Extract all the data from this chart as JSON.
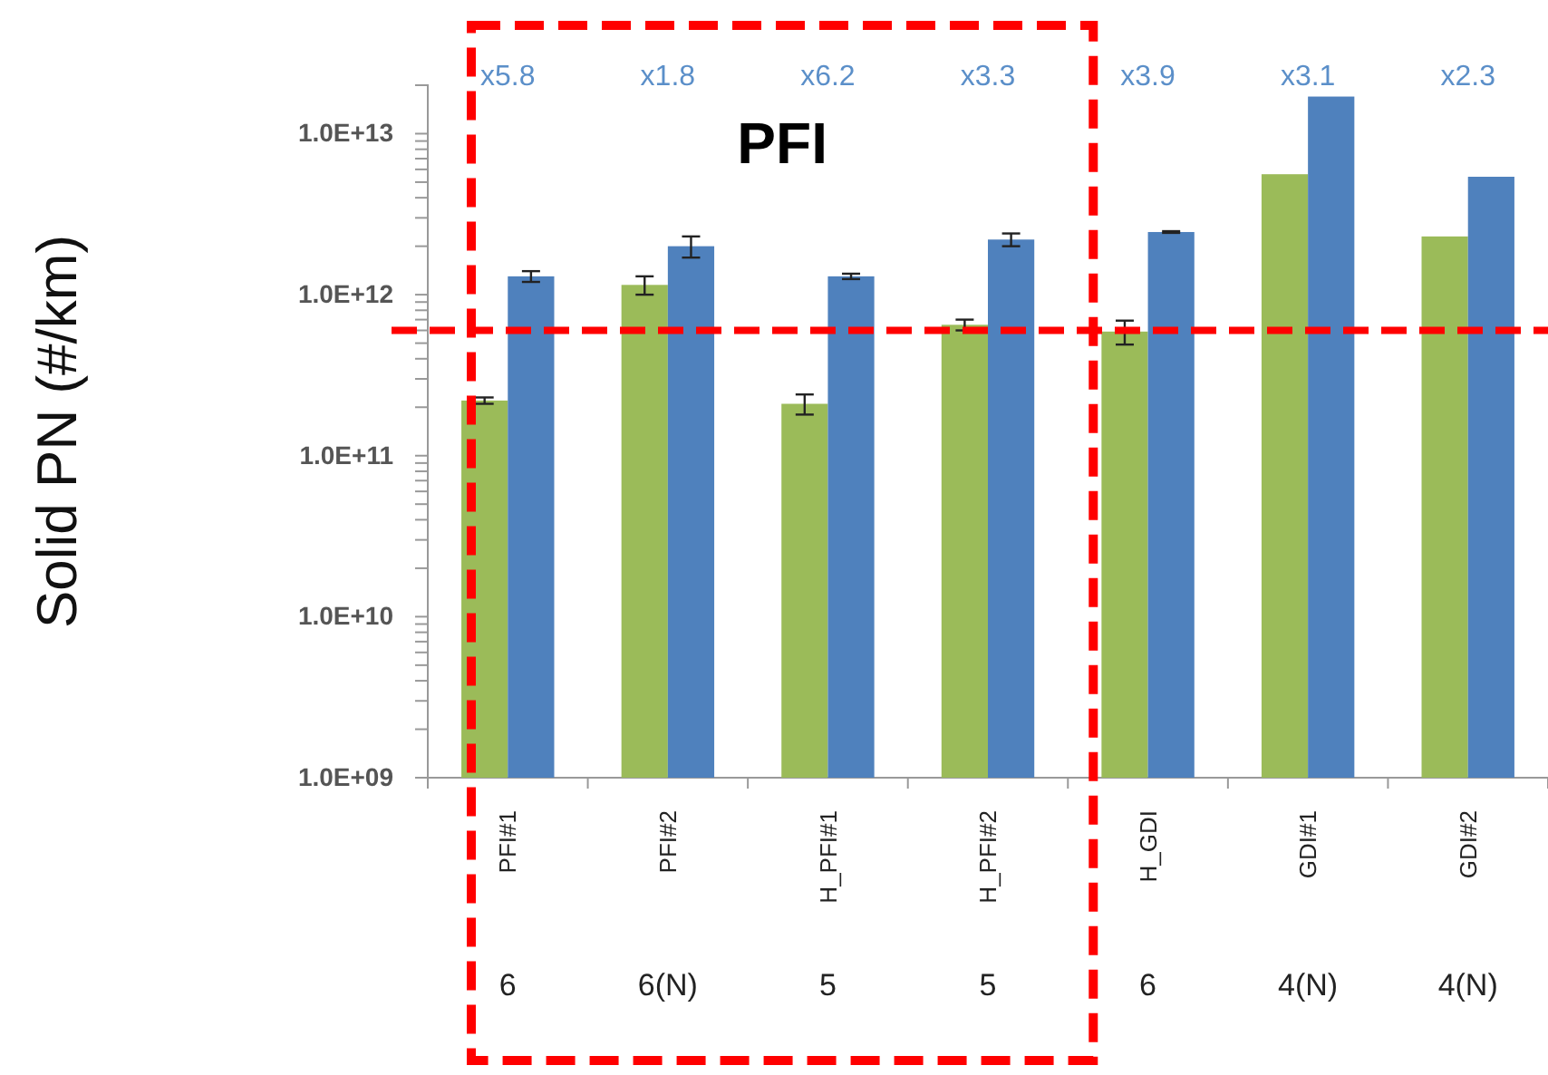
{
  "chart_data": {
    "type": "bar",
    "ylabel": "Solid PN (#/km)",
    "log": true,
    "categories": [
      "PFI#1",
      "PFI#2",
      "H_PFI#1",
      "H_PFI#2",
      "H_GDI",
      "GDI#1",
      "GDI#2"
    ],
    "series": [
      {
        "color": "#9bbb59",
        "values": [
          220000000000.0,
          1150000000000.0,
          210000000000.0,
          650000000000.0,
          590000000000.0,
          5600000000000.0,
          2300000000000.0
        ],
        "errors": [
          10000000000.0,
          150000000000.0,
          30000000000.0,
          50000000000.0,
          100000000000.0,
          null,
          null
        ]
      },
      {
        "color": "#4f81bd",
        "values": [
          1300000000000.0,
          2000000000000.0,
          1300000000000.0,
          2200000000000.0,
          2450000000000.0,
          17000000000000.0,
          5400000000000.0
        ],
        "errors": [
          100000000000.0,
          300000000000.0,
          50000000000.0,
          200000000000.0,
          30000000000.0,
          null,
          null
        ]
      }
    ],
    "ylim": [
      1000000000.0,
      20000000000000.0
    ],
    "yticks": [
      {
        "value": 1000000000.0,
        "label": "1.0E+09"
      },
      {
        "value": 2000000000.0,
        "label": null
      },
      {
        "value": 3000000000.0,
        "label": null
      },
      {
        "value": 4000000000.0,
        "label": null
      },
      {
        "value": 5000000000.0,
        "label": null
      },
      {
        "value": 6000000000.0,
        "label": null
      },
      {
        "value": 7000000000.0,
        "label": null
      },
      {
        "value": 8000000000.0,
        "label": null
      },
      {
        "value": 9000000000.0,
        "label": null
      },
      {
        "value": 10000000000.0,
        "label": "1.0E+10"
      },
      {
        "value": 20000000000.0,
        "label": null
      },
      {
        "value": 30000000000.0,
        "label": null
      },
      {
        "value": 40000000000.0,
        "label": null
      },
      {
        "value": 50000000000.0,
        "label": null
      },
      {
        "value": 60000000000.0,
        "label": null
      },
      {
        "value": 70000000000.0,
        "label": null
      },
      {
        "value": 80000000000.0,
        "label": null
      },
      {
        "value": 90000000000.0,
        "label": null
      },
      {
        "value": 100000000000.0,
        "label": "1.0E+11"
      },
      {
        "value": 200000000000.0,
        "label": null
      },
      {
        "value": 300000000000.0,
        "label": null
      },
      {
        "value": 400000000000.0,
        "label": null
      },
      {
        "value": 500000000000.0,
        "label": null
      },
      {
        "value": 600000000000.0,
        "label": null
      },
      {
        "value": 700000000000.0,
        "label": null
      },
      {
        "value": 800000000000.0,
        "label": null
      },
      {
        "value": 900000000000.0,
        "label": null
      },
      {
        "value": 1000000000000.0,
        "label": "1.0E+12"
      },
      {
        "value": 2000000000000.0,
        "label": null
      },
      {
        "value": 3000000000000.0,
        "label": null
      },
      {
        "value": 4000000000000.0,
        "label": null
      },
      {
        "value": 5000000000000.0,
        "label": null
      },
      {
        "value": 6000000000000.0,
        "label": null
      },
      {
        "value": 7000000000000.0,
        "label": null
      },
      {
        "value": 8000000000000.0,
        "label": null
      },
      {
        "value": 9000000000000.0,
        "label": null
      },
      {
        "value": 10000000000000.0,
        "label": "1.0E+13"
      },
      {
        "value": 20000000000000.0,
        "label": null
      }
    ],
    "ref_lines": [
      {
        "axis": "y",
        "value": 600000000000.0,
        "color": "#ff0000",
        "line_style": "dashed"
      }
    ],
    "annotations": [
      "x5.8",
      "x1.8",
      "x6.2",
      "x3.3",
      "x3.9",
      "x3.1",
      "x2.3",
      "6",
      "6(N)",
      "5",
      "5",
      "6",
      "4(N)",
      "4(N)",
      "PFI"
    ]
  }
}
